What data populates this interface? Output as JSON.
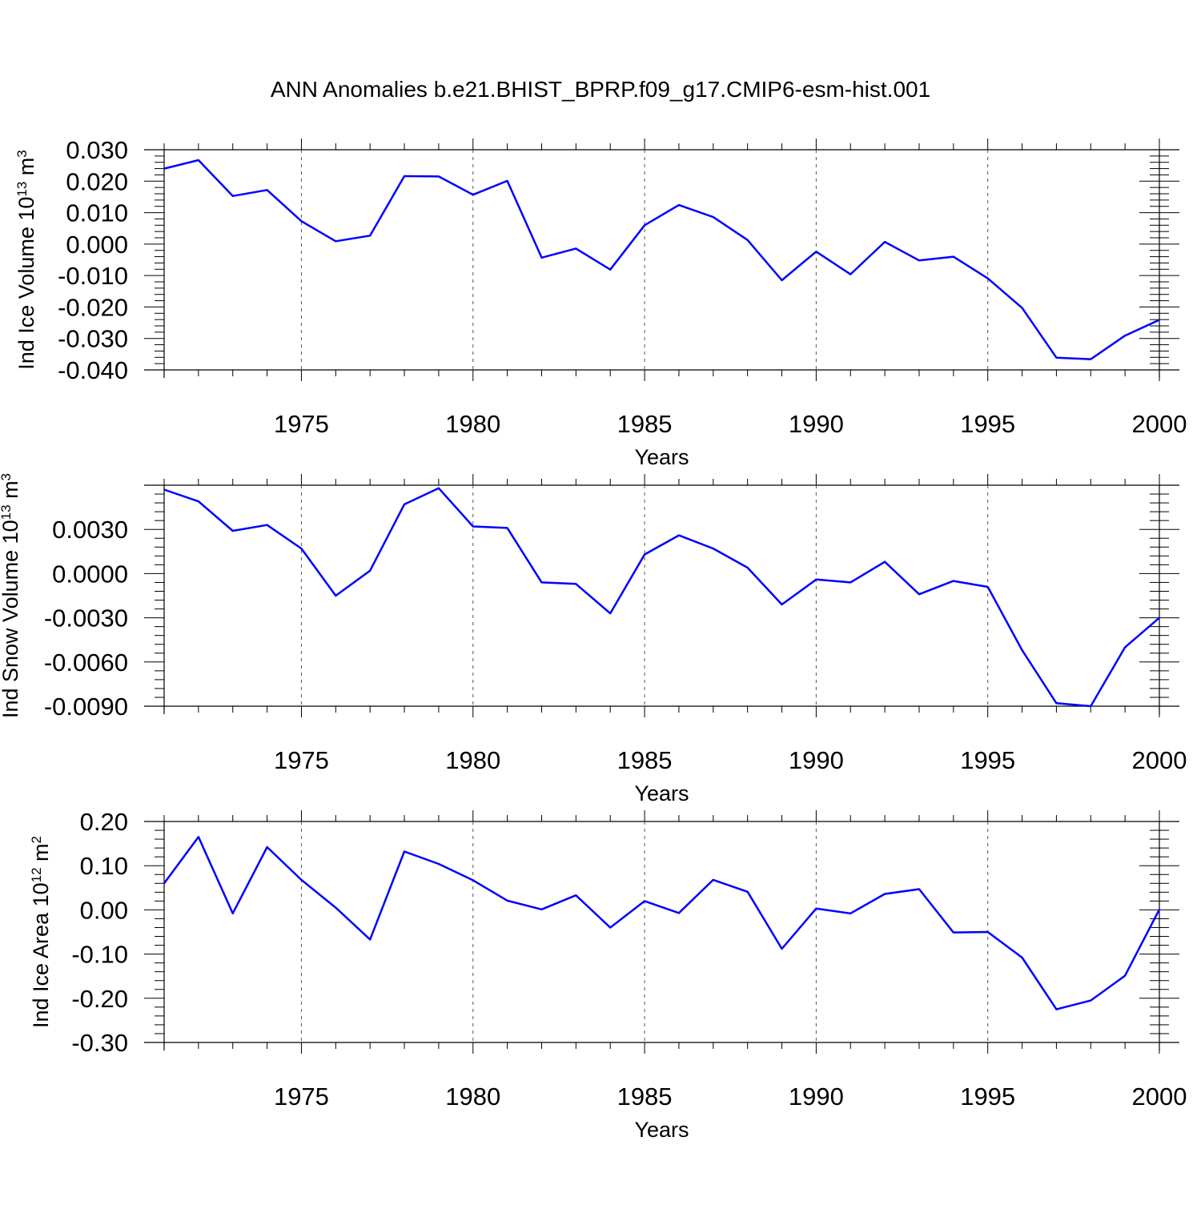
{
  "figure": {
    "title": "ANN Anomalies b.e21.BHIST_BPRP.f09_g17.CMIP6-esm-hist.001"
  },
  "colors": {
    "line": "#0000ff",
    "axis": "#000000",
    "grid": "#555555"
  },
  "chart_data": [
    {
      "type": "line",
      "xlabel": "Years",
      "ylabel": {
        "text": "Ind Ice Volume 10",
        "sup1": "13",
        "unit": " m",
        "sup2": "3"
      },
      "xlim": [
        1971,
        2000
      ],
      "ylim": [
        -0.04,
        0.03
      ],
      "x_ticks": [
        1975,
        1980,
        1985,
        1990,
        1995,
        2000
      ],
      "y_ticks": [
        -0.04,
        -0.03,
        -0.02,
        -0.01,
        0.0,
        0.01,
        0.02,
        0.03
      ],
      "y_tick_labels": [
        "-0.040",
        "-0.030",
        "-0.020",
        "-0.010",
        "0.000",
        "0.010",
        "0.020",
        "0.030"
      ],
      "grid": "vertical dashed at labeled years",
      "x": [
        1971,
        1972,
        1973,
        1974,
        1975,
        1976,
        1977,
        1978,
        1979,
        1980,
        1981,
        1982,
        1983,
        1984,
        1985,
        1986,
        1987,
        1988,
        1989,
        1990,
        1991,
        1992,
        1993,
        1994,
        1995,
        1996,
        1997,
        1998,
        1999,
        2000
      ],
      "y": [
        0.024,
        0.0267,
        0.0153,
        0.0172,
        0.0073,
        0.0009,
        0.0027,
        0.0216,
        0.0215,
        0.0157,
        0.0201,
        -0.0043,
        -0.0014,
        -0.0081,
        0.006,
        0.0124,
        0.0086,
        0.0013,
        -0.0115,
        -0.0024,
        -0.0096,
        0.0007,
        -0.0052,
        -0.004,
        -0.0109,
        -0.0203,
        -0.0361,
        -0.0366,
        -0.0291,
        -0.0241
      ]
    },
    {
      "type": "line",
      "xlabel": "Years",
      "ylabel": {
        "text": "Ind Snow Volume 10",
        "sup1": "13",
        "unit": " m",
        "sup2": "3"
      },
      "xlim": [
        1971,
        2000
      ],
      "ylim": [
        -0.009,
        0.006
      ],
      "x_ticks": [
        1975,
        1980,
        1985,
        1990,
        1995,
        2000
      ],
      "y_ticks": [
        -0.009,
        -0.006,
        -0.003,
        0.0,
        0.003
      ],
      "y_tick_labels": [
        "-0.0090",
        "-0.0060",
        "-0.0030",
        "0.0000",
        "0.0030"
      ],
      "grid": "vertical dashed at labeled years",
      "x": [
        1971,
        1972,
        1973,
        1974,
        1975,
        1976,
        1977,
        1978,
        1979,
        1980,
        1981,
        1982,
        1983,
        1984,
        1985,
        1986,
        1987,
        1988,
        1989,
        1990,
        1991,
        1992,
        1993,
        1994,
        1995,
        1996,
        1997,
        1998,
        1999,
        2000
      ],
      "y": [
        0.0057,
        0.0049,
        0.0029,
        0.0033,
        0.0017,
        -0.0015,
        0.0002,
        0.0047,
        0.0058,
        0.0032,
        0.0031,
        -0.0006,
        -0.0007,
        -0.0027,
        0.0013,
        0.0026,
        0.0017,
        0.0004,
        -0.0021,
        -0.0004,
        -0.0006,
        0.0008,
        -0.0014,
        -0.0005,
        -0.0009,
        -0.0052,
        -0.0088,
        -0.009,
        -0.005,
        -0.003
      ]
    },
    {
      "type": "line",
      "xlabel": "Years",
      "ylabel": {
        "text": "Ind Ice Area 10",
        "sup1": "12",
        "unit": " m",
        "sup2": "2"
      },
      "xlim": [
        1971,
        2000
      ],
      "ylim": [
        -0.3,
        0.2
      ],
      "x_ticks": [
        1975,
        1980,
        1985,
        1990,
        1995,
        2000
      ],
      "y_ticks": [
        -0.3,
        -0.2,
        -0.1,
        0.0,
        0.1,
        0.2
      ],
      "y_tick_labels": [
        "-0.30",
        "-0.20",
        "-0.10",
        "0.00",
        "0.10",
        "0.20"
      ],
      "grid": "vertical dashed at labeled years",
      "x": [
        1971,
        1972,
        1973,
        1974,
        1975,
        1976,
        1977,
        1978,
        1979,
        1980,
        1981,
        1982,
        1983,
        1984,
        1985,
        1986,
        1987,
        1988,
        1989,
        1990,
        1991,
        1992,
        1993,
        1994,
        1995,
        1996,
        1997,
        1998,
        1999,
        2000
      ],
      "y": [
        0.06,
        0.165,
        -0.008,
        0.142,
        0.068,
        0.005,
        -0.067,
        0.132,
        0.104,
        0.067,
        0.021,
        0.001,
        0.033,
        -0.04,
        0.02,
        -0.007,
        0.068,
        0.041,
        -0.088,
        0.003,
        -0.008,
        0.036,
        0.047,
        -0.051,
        -0.05,
        -0.108,
        -0.225,
        -0.205,
        -0.149,
        0.001
      ]
    }
  ]
}
